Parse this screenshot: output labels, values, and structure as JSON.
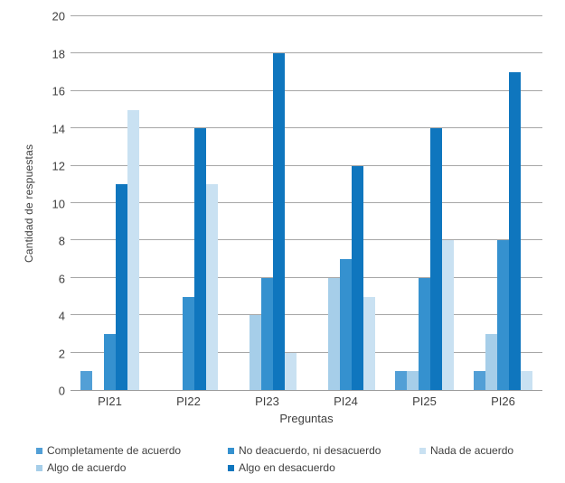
{
  "chart_data": {
    "type": "bar",
    "title": "",
    "xlabel": "Preguntas",
    "ylabel": "Cantidad de respuestas",
    "ylim": [
      0,
      20
    ],
    "yticks": [
      0,
      2,
      4,
      6,
      8,
      10,
      12,
      14,
      16,
      18,
      20
    ],
    "grid": true,
    "legend_position": "bottom",
    "categories": [
      "PI21",
      "PI22",
      "PI23",
      "PI24",
      "PI25",
      "PI26"
    ],
    "series": [
      {
        "name": "Completamente de acuerdo",
        "color": "#529fd6",
        "values": [
          1,
          0,
          0,
          0,
          1,
          1
        ]
      },
      {
        "name": "Algo de acuerdo",
        "color": "#a6cee9",
        "values": [
          0,
          0,
          4,
          6,
          1,
          3
        ]
      },
      {
        "name": "No deacuerdo, ni desacuerdo",
        "color": "#3591cf",
        "values": [
          3,
          5,
          6,
          7,
          6,
          8
        ]
      },
      {
        "name": "Algo en desacuerdo",
        "color": "#0f76be",
        "values": [
          11,
          14,
          18,
          12,
          14,
          17
        ]
      },
      {
        "name": "Nada de acuerdo",
        "color": "#c9e1f2",
        "values": [
          15,
          11,
          2,
          5,
          8,
          1
        ]
      }
    ],
    "legend_columns": [
      [
        0,
        1
      ],
      [
        2,
        3
      ],
      [
        4
      ]
    ]
  },
  "colors": {
    "gridline": "#a6a6a6",
    "axis_line": "#9d9d9d",
    "text": "#3f3f3f",
    "background": "#ffffff"
  }
}
